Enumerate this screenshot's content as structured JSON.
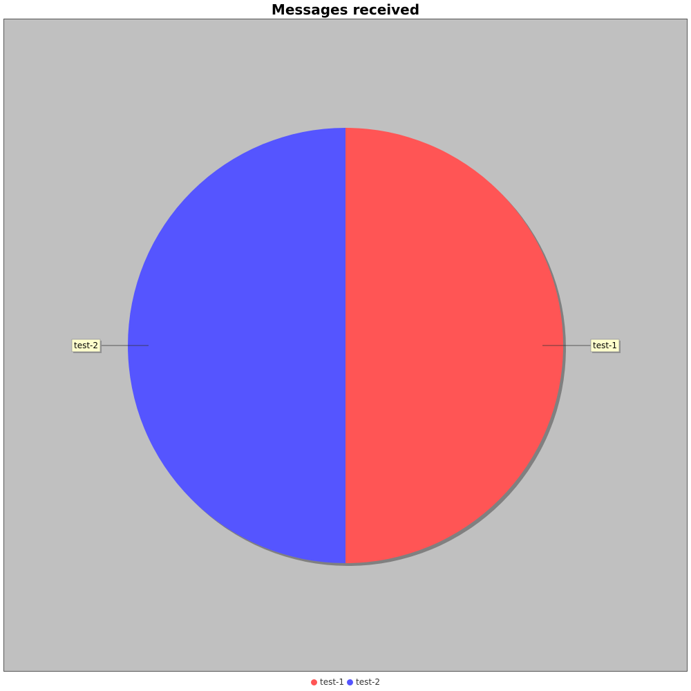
{
  "chart_data": {
    "type": "pie",
    "title": "Messages received",
    "categories": [
      "test-1",
      "test-2"
    ],
    "values": [
      50,
      50
    ],
    "colors": [
      "#ff5555",
      "#5555ff"
    ],
    "legend_position": "bottom",
    "background": "#c0c0c0",
    "label_background": "#ffffcc"
  }
}
